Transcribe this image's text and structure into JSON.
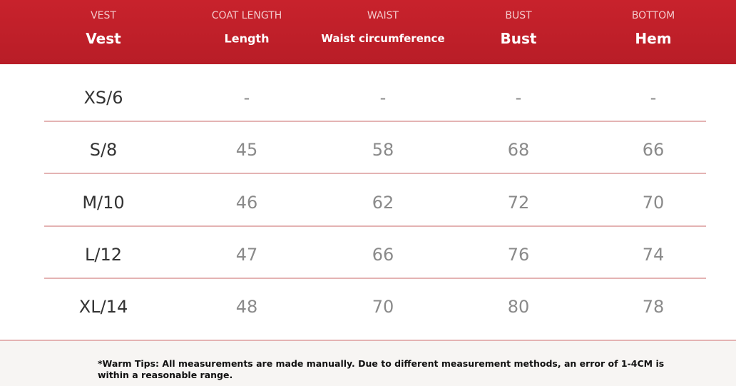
{
  "header": {
    "columns": [
      {
        "label": "VEST",
        "title": "Vest"
      },
      {
        "label": "COAT LENGTH",
        "title": "Length"
      },
      {
        "label": "WAIST",
        "title": "Waist circumference"
      },
      {
        "label": "BUST",
        "title": "Bust"
      },
      {
        "label": "BOTTOM",
        "title": "Hem"
      }
    ]
  },
  "table": {
    "rows": [
      [
        "XS/6",
        "-",
        "-",
        "-",
        "-"
      ],
      [
        "S/8",
        "45",
        "58",
        "68",
        "66"
      ],
      [
        "M/10",
        "46",
        "62",
        "72",
        "70"
      ],
      [
        "L/12",
        "47",
        "66",
        "76",
        "74"
      ],
      [
        "XL/14",
        "48",
        "70",
        "80",
        "78"
      ]
    ]
  },
  "footer": {
    "note": "*Warm Tips: All measurements are made manually. Due to different measurement methods, an error of 1-4CM is within a reasonable range."
  }
}
